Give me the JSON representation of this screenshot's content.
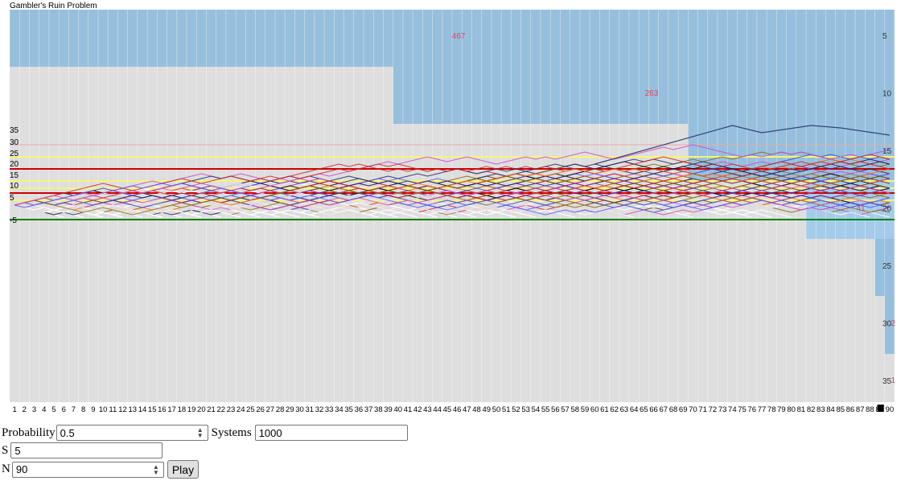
{
  "title": "Gambler's Ruin Problem",
  "chart_data": {
    "type": "line",
    "description_free": true,
    "x_ticks": [
      "1",
      "2",
      "3",
      "4",
      "5",
      "6",
      "7",
      "8",
      "9",
      "10",
      "11",
      "12",
      "13",
      "14",
      "15",
      "16",
      "17",
      "18",
      "19",
      "20",
      "21",
      "22",
      "23",
      "24",
      "25",
      "26",
      "27",
      "28",
      "29",
      "30",
      "31",
      "32",
      "33",
      "34",
      "35",
      "36",
      "37",
      "38",
      "39",
      "40",
      "41",
      "42",
      "43",
      "44",
      "45",
      "46",
      "47",
      "48",
      "49",
      "50",
      "51",
      "52",
      "53",
      "54",
      "55",
      "56",
      "57",
      "58",
      "59",
      "60",
      "61",
      "62",
      "63",
      "64",
      "65",
      "66",
      "67",
      "68",
      "69",
      "70",
      "71",
      "72",
      "73",
      "74",
      "75",
      "76",
      "77",
      "78",
      "79",
      "80",
      "81",
      "82",
      "83",
      "84",
      "85",
      "86",
      "87",
      "88",
      "89",
      "90"
    ],
    "y_ticks_left": [
      "35",
      "30",
      "25",
      "20",
      "15",
      "10",
      "5",
      "-5"
    ],
    "y_ticks_right": [
      "5",
      "10",
      "15",
      "20",
      "25",
      "30",
      "35"
    ],
    "ruin_counts": [
      {
        "count": "467",
        "x": 46
      },
      {
        "count": "263",
        "x": 66
      },
      {
        "count": "41",
        "x": 88
      },
      {
        "count": "2",
        "x": 90
      },
      {
        "count": "1",
        "x": 90
      }
    ],
    "ruin_steps": [
      40,
      70,
      82,
      89,
      90
    ],
    "systems": 1000,
    "start": 5,
    "steps": 90,
    "probability": 0.5,
    "colors": {
      "ruin_fill": "#96bfdd",
      "ruin_fill_light": "#a9d2ef",
      "background": "#dedede",
      "zero_line": "#008000",
      "count_text": "#dd4466"
    }
  },
  "controls": {
    "probability_label": "Probability",
    "probability_value": "0.5",
    "systems_label": "Systems",
    "systems_value": "1000",
    "s_label": "S",
    "s_value": "5",
    "n_label": "N",
    "n_value": "90",
    "play_label": "Play"
  }
}
